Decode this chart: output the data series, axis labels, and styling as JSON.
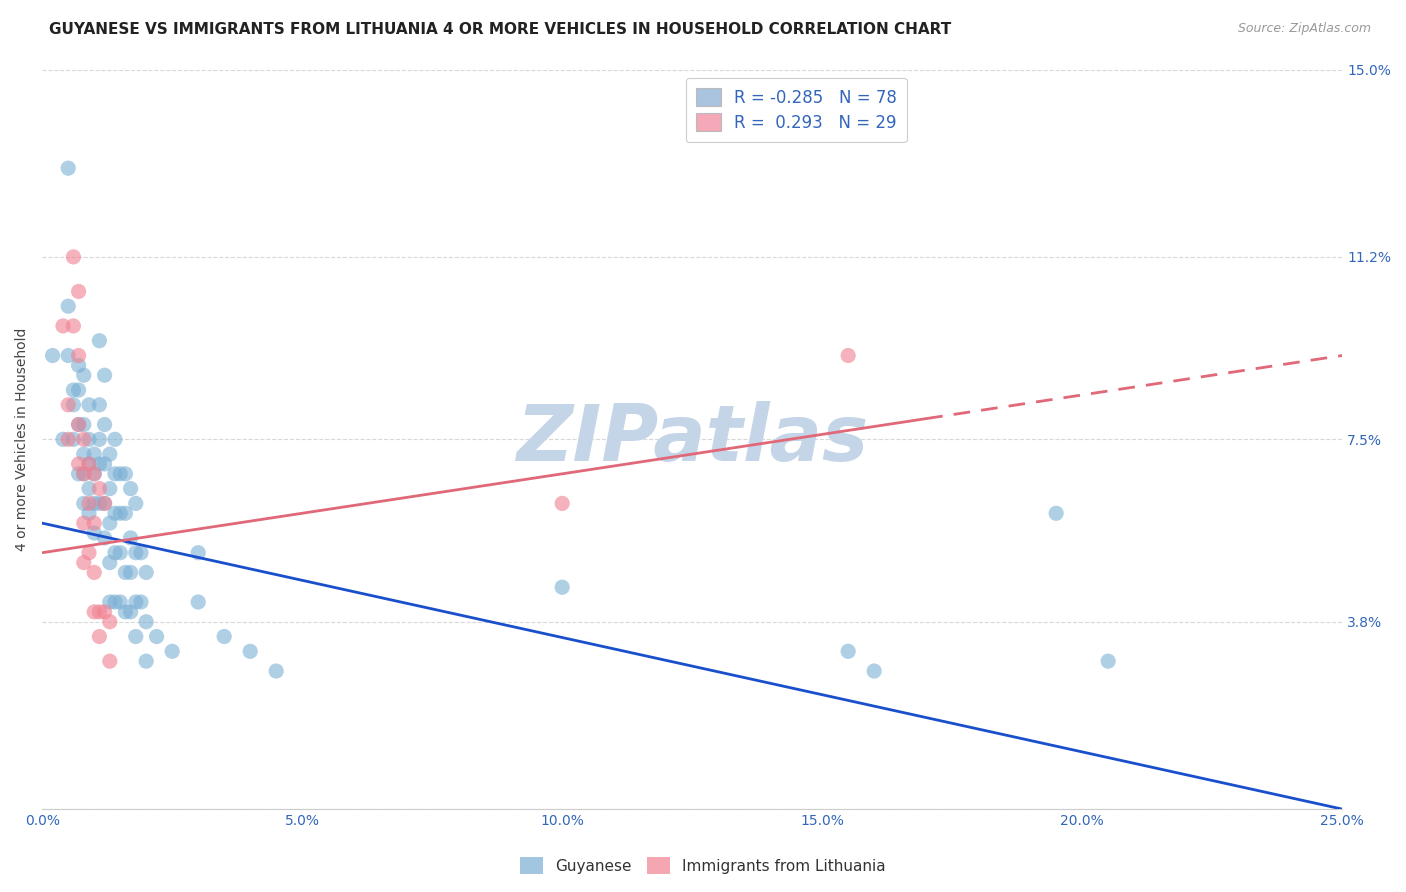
{
  "title": "GUYANESE VS IMMIGRANTS FROM LITHUANIA 4 OR MORE VEHICLES IN HOUSEHOLD CORRELATION CHART",
  "source": "Source: ZipAtlas.com",
  "ylabel": "4 or more Vehicles in Household",
  "xlim": [
    0.0,
    0.25
  ],
  "ylim": [
    0.0,
    0.15
  ],
  "xticks": [
    0.0,
    0.05,
    0.1,
    0.15,
    0.2,
    0.25
  ],
  "yticks": [
    0.0,
    0.038,
    0.075,
    0.112,
    0.15
  ],
  "ytick_labels": [
    "",
    "3.8%",
    "7.5%",
    "11.2%",
    "15.0%"
  ],
  "xtick_labels": [
    "0.0%",
    "5.0%",
    "10.0%",
    "15.0%",
    "20.0%",
    "25.0%"
  ],
  "watermark": "ZIPatlas",
  "legend_items": [
    {
      "label": "R = -0.285   N = 78",
      "color": "#aac4e0"
    },
    {
      "label": "R =  0.293   N = 29",
      "color": "#f4a8b8"
    }
  ],
  "guyanese_color": "#7bafd4",
  "lithuania_color": "#f08090",
  "blue_line_color": "#1a4fcc",
  "pink_line_color": "#e06878",
  "blue_line": {
    "x0": 0.0,
    "y0": 0.058,
    "x1": 0.25,
    "y1": 0.0
  },
  "pink_line": {
    "x0": 0.0,
    "y0": 0.052,
    "x1": 0.25,
    "y1": 0.092
  },
  "pink_line_solid_end": 0.17,
  "blue_scatter": [
    [
      0.002,
      0.092
    ],
    [
      0.004,
      0.075
    ],
    [
      0.005,
      0.13
    ],
    [
      0.005,
      0.102
    ],
    [
      0.005,
      0.092
    ],
    [
      0.006,
      0.085
    ],
    [
      0.006,
      0.082
    ],
    [
      0.006,
      0.075
    ],
    [
      0.007,
      0.09
    ],
    [
      0.007,
      0.085
    ],
    [
      0.007,
      0.078
    ],
    [
      0.007,
      0.068
    ],
    [
      0.008,
      0.088
    ],
    [
      0.008,
      0.078
    ],
    [
      0.008,
      0.072
    ],
    [
      0.008,
      0.068
    ],
    [
      0.008,
      0.062
    ],
    [
      0.009,
      0.082
    ],
    [
      0.009,
      0.075
    ],
    [
      0.009,
      0.07
    ],
    [
      0.009,
      0.065
    ],
    [
      0.009,
      0.06
    ],
    [
      0.01,
      0.072
    ],
    [
      0.01,
      0.068
    ],
    [
      0.01,
      0.062
    ],
    [
      0.01,
      0.056
    ],
    [
      0.011,
      0.095
    ],
    [
      0.011,
      0.082
    ],
    [
      0.011,
      0.075
    ],
    [
      0.011,
      0.07
    ],
    [
      0.011,
      0.062
    ],
    [
      0.012,
      0.088
    ],
    [
      0.012,
      0.078
    ],
    [
      0.012,
      0.07
    ],
    [
      0.012,
      0.062
    ],
    [
      0.012,
      0.055
    ],
    [
      0.013,
      0.072
    ],
    [
      0.013,
      0.065
    ],
    [
      0.013,
      0.058
    ],
    [
      0.013,
      0.05
    ],
    [
      0.013,
      0.042
    ],
    [
      0.014,
      0.075
    ],
    [
      0.014,
      0.068
    ],
    [
      0.014,
      0.06
    ],
    [
      0.014,
      0.052
    ],
    [
      0.014,
      0.042
    ],
    [
      0.015,
      0.068
    ],
    [
      0.015,
      0.06
    ],
    [
      0.015,
      0.052
    ],
    [
      0.015,
      0.042
    ],
    [
      0.016,
      0.068
    ],
    [
      0.016,
      0.06
    ],
    [
      0.016,
      0.048
    ],
    [
      0.016,
      0.04
    ],
    [
      0.017,
      0.065
    ],
    [
      0.017,
      0.055
    ],
    [
      0.017,
      0.048
    ],
    [
      0.017,
      0.04
    ],
    [
      0.018,
      0.062
    ],
    [
      0.018,
      0.052
    ],
    [
      0.018,
      0.042
    ],
    [
      0.018,
      0.035
    ],
    [
      0.019,
      0.052
    ],
    [
      0.019,
      0.042
    ],
    [
      0.02,
      0.048
    ],
    [
      0.02,
      0.038
    ],
    [
      0.02,
      0.03
    ],
    [
      0.022,
      0.035
    ],
    [
      0.025,
      0.032
    ],
    [
      0.03,
      0.052
    ],
    [
      0.03,
      0.042
    ],
    [
      0.035,
      0.035
    ],
    [
      0.04,
      0.032
    ],
    [
      0.045,
      0.028
    ],
    [
      0.1,
      0.045
    ],
    [
      0.155,
      0.032
    ],
    [
      0.16,
      0.028
    ],
    [
      0.195,
      0.06
    ],
    [
      0.205,
      0.03
    ]
  ],
  "pink_scatter": [
    [
      0.004,
      0.098
    ],
    [
      0.005,
      0.082
    ],
    [
      0.005,
      0.075
    ],
    [
      0.006,
      0.112
    ],
    [
      0.006,
      0.098
    ],
    [
      0.007,
      0.105
    ],
    [
      0.007,
      0.092
    ],
    [
      0.007,
      0.078
    ],
    [
      0.007,
      0.07
    ],
    [
      0.008,
      0.075
    ],
    [
      0.008,
      0.068
    ],
    [
      0.008,
      0.058
    ],
    [
      0.008,
      0.05
    ],
    [
      0.009,
      0.07
    ],
    [
      0.009,
      0.062
    ],
    [
      0.009,
      0.052
    ],
    [
      0.01,
      0.068
    ],
    [
      0.01,
      0.058
    ],
    [
      0.01,
      0.048
    ],
    [
      0.01,
      0.04
    ],
    [
      0.011,
      0.065
    ],
    [
      0.011,
      0.04
    ],
    [
      0.011,
      0.035
    ],
    [
      0.012,
      0.062
    ],
    [
      0.012,
      0.04
    ],
    [
      0.013,
      0.038
    ],
    [
      0.013,
      0.03
    ],
    [
      0.1,
      0.062
    ],
    [
      0.155,
      0.092
    ]
  ],
  "background_color": "#ffffff",
  "grid_color": "#d8d8d8",
  "title_fontsize": 11,
  "axis_label_fontsize": 10,
  "tick_fontsize": 10,
  "watermark_color": "#c5d5e8",
  "watermark_fontsize": 56,
  "right_ytick_color": "#3366bb",
  "xtick_color": "#3366bb"
}
